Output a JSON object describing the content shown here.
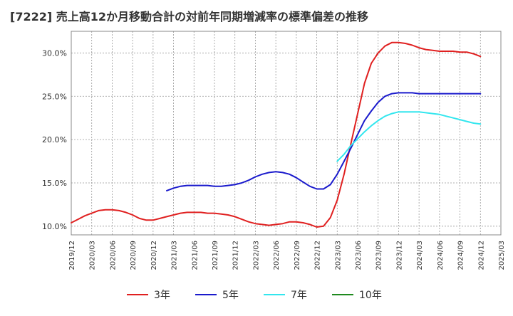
{
  "chart_data": {
    "type": "line",
    "title": "[7222]  売上高12か月移動合計の対前年同期増減率の標準偏差の推移",
    "xlabel": "",
    "ylabel": "",
    "x_ticks": [
      "2019/12",
      "2020/03",
      "2020/06",
      "2020/09",
      "2020/12",
      "2021/03",
      "2021/06",
      "2021/09",
      "2021/12",
      "2022/03",
      "2022/06",
      "2022/09",
      "2022/12",
      "2023/03",
      "2023/06",
      "2023/09",
      "2023/12",
      "2024/03",
      "2024/06",
      "2024/09",
      "2024/12",
      "2025/03"
    ],
    "y_ticks": [
      "10.0%",
      "15.0%",
      "20.0%",
      "25.0%",
      "30.0%"
    ],
    "ylim": [
      9.0,
      32.5
    ],
    "grid": true,
    "legend_position": "bottom",
    "series": [
      {
        "name": "3年",
        "color": "#e02020",
        "points": [
          [
            "2019/12",
            10.4
          ],
          [
            "2020/01",
            10.8
          ],
          [
            "2020/02",
            11.2
          ],
          [
            "2020/03",
            11.5
          ],
          [
            "2020/04",
            11.8
          ],
          [
            "2020/05",
            11.9
          ],
          [
            "2020/06",
            11.9
          ],
          [
            "2020/07",
            11.8
          ],
          [
            "2020/08",
            11.6
          ],
          [
            "2020/09",
            11.3
          ],
          [
            "2020/10",
            10.9
          ],
          [
            "2020/11",
            10.7
          ],
          [
            "2020/12",
            10.7
          ],
          [
            "2021/01",
            10.9
          ],
          [
            "2021/02",
            11.1
          ],
          [
            "2021/03",
            11.3
          ],
          [
            "2021/04",
            11.5
          ],
          [
            "2021/05",
            11.6
          ],
          [
            "2021/06",
            11.6
          ],
          [
            "2021/07",
            11.6
          ],
          [
            "2021/08",
            11.5
          ],
          [
            "2021/09",
            11.5
          ],
          [
            "2021/10",
            11.4
          ],
          [
            "2021/11",
            11.3
          ],
          [
            "2021/12",
            11.1
          ],
          [
            "2022/01",
            10.8
          ],
          [
            "2022/02",
            10.5
          ],
          [
            "2022/03",
            10.3
          ],
          [
            "2022/04",
            10.2
          ],
          [
            "2022/05",
            10.1
          ],
          [
            "2022/06",
            10.2
          ],
          [
            "2022/07",
            10.3
          ],
          [
            "2022/08",
            10.5
          ],
          [
            "2022/09",
            10.5
          ],
          [
            "2022/10",
            10.4
          ],
          [
            "2022/11",
            10.2
          ],
          [
            "2022/12",
            9.9
          ],
          [
            "2023/01",
            10.0
          ],
          [
            "2023/02",
            11.0
          ],
          [
            "2023/03",
            13.0
          ],
          [
            "2023/04",
            16.0
          ],
          [
            "2023/05",
            19.5
          ],
          [
            "2023/06",
            23.0
          ],
          [
            "2023/07",
            26.5
          ],
          [
            "2023/08",
            28.8
          ],
          [
            "2023/09",
            30.0
          ],
          [
            "2023/10",
            30.8
          ],
          [
            "2023/11",
            31.2
          ],
          [
            "2023/12",
            31.2
          ],
          [
            "2024/01",
            31.1
          ],
          [
            "2024/02",
            30.9
          ],
          [
            "2024/03",
            30.6
          ],
          [
            "2024/04",
            30.4
          ],
          [
            "2024/05",
            30.3
          ],
          [
            "2024/06",
            30.2
          ],
          [
            "2024/07",
            30.2
          ],
          [
            "2024/08",
            30.2
          ],
          [
            "2024/09",
            30.1
          ],
          [
            "2024/10",
            30.1
          ],
          [
            "2024/11",
            29.9
          ],
          [
            "2024/12",
            29.6
          ]
        ]
      },
      {
        "name": "5年",
        "color": "#1a1acc",
        "points": [
          [
            "2021/02",
            14.1
          ],
          [
            "2021/03",
            14.4
          ],
          [
            "2021/04",
            14.6
          ],
          [
            "2021/05",
            14.7
          ],
          [
            "2021/06",
            14.7
          ],
          [
            "2021/07",
            14.7
          ],
          [
            "2021/08",
            14.7
          ],
          [
            "2021/09",
            14.6
          ],
          [
            "2021/10",
            14.6
          ],
          [
            "2021/11",
            14.7
          ],
          [
            "2021/12",
            14.8
          ],
          [
            "2022/01",
            15.0
          ],
          [
            "2022/02",
            15.3
          ],
          [
            "2022/03",
            15.7
          ],
          [
            "2022/04",
            16.0
          ],
          [
            "2022/05",
            16.2
          ],
          [
            "2022/06",
            16.3
          ],
          [
            "2022/07",
            16.2
          ],
          [
            "2022/08",
            16.0
          ],
          [
            "2022/09",
            15.6
          ],
          [
            "2022/10",
            15.1
          ],
          [
            "2022/11",
            14.6
          ],
          [
            "2022/12",
            14.3
          ],
          [
            "2023/01",
            14.3
          ],
          [
            "2023/02",
            14.8
          ],
          [
            "2023/03",
            16.0
          ],
          [
            "2023/04",
            17.5
          ],
          [
            "2023/05",
            19.0
          ],
          [
            "2023/06",
            20.6
          ],
          [
            "2023/07",
            22.2
          ],
          [
            "2023/08",
            23.3
          ],
          [
            "2023/09",
            24.3
          ],
          [
            "2023/10",
            25.0
          ],
          [
            "2023/11",
            25.3
          ],
          [
            "2023/12",
            25.4
          ],
          [
            "2024/01",
            25.4
          ],
          [
            "2024/02",
            25.4
          ],
          [
            "2024/03",
            25.3
          ],
          [
            "2024/04",
            25.3
          ],
          [
            "2024/05",
            25.3
          ],
          [
            "2024/06",
            25.3
          ],
          [
            "2024/07",
            25.3
          ],
          [
            "2024/08",
            25.3
          ],
          [
            "2024/09",
            25.3
          ],
          [
            "2024/10",
            25.3
          ],
          [
            "2024/11",
            25.3
          ],
          [
            "2024/12",
            25.3
          ]
        ]
      },
      {
        "name": "7年",
        "color": "#33e6ee",
        "points": [
          [
            "2023/03",
            17.5
          ],
          [
            "2023/04",
            18.3
          ],
          [
            "2023/05",
            19.3
          ],
          [
            "2023/06",
            20.1
          ],
          [
            "2023/07",
            20.9
          ],
          [
            "2023/08",
            21.6
          ],
          [
            "2023/09",
            22.2
          ],
          [
            "2023/10",
            22.7
          ],
          [
            "2023/11",
            23.0
          ],
          [
            "2023/12",
            23.2
          ],
          [
            "2024/01",
            23.2
          ],
          [
            "2024/02",
            23.2
          ],
          [
            "2024/03",
            23.2
          ],
          [
            "2024/04",
            23.1
          ],
          [
            "2024/05",
            23.0
          ],
          [
            "2024/06",
            22.9
          ],
          [
            "2024/07",
            22.7
          ],
          [
            "2024/08",
            22.5
          ],
          [
            "2024/09",
            22.3
          ],
          [
            "2024/10",
            22.1
          ],
          [
            "2024/11",
            21.9
          ],
          [
            "2024/12",
            21.8
          ]
        ]
      },
      {
        "name": "10年",
        "color": "#1f8a1f",
        "points": []
      }
    ]
  }
}
